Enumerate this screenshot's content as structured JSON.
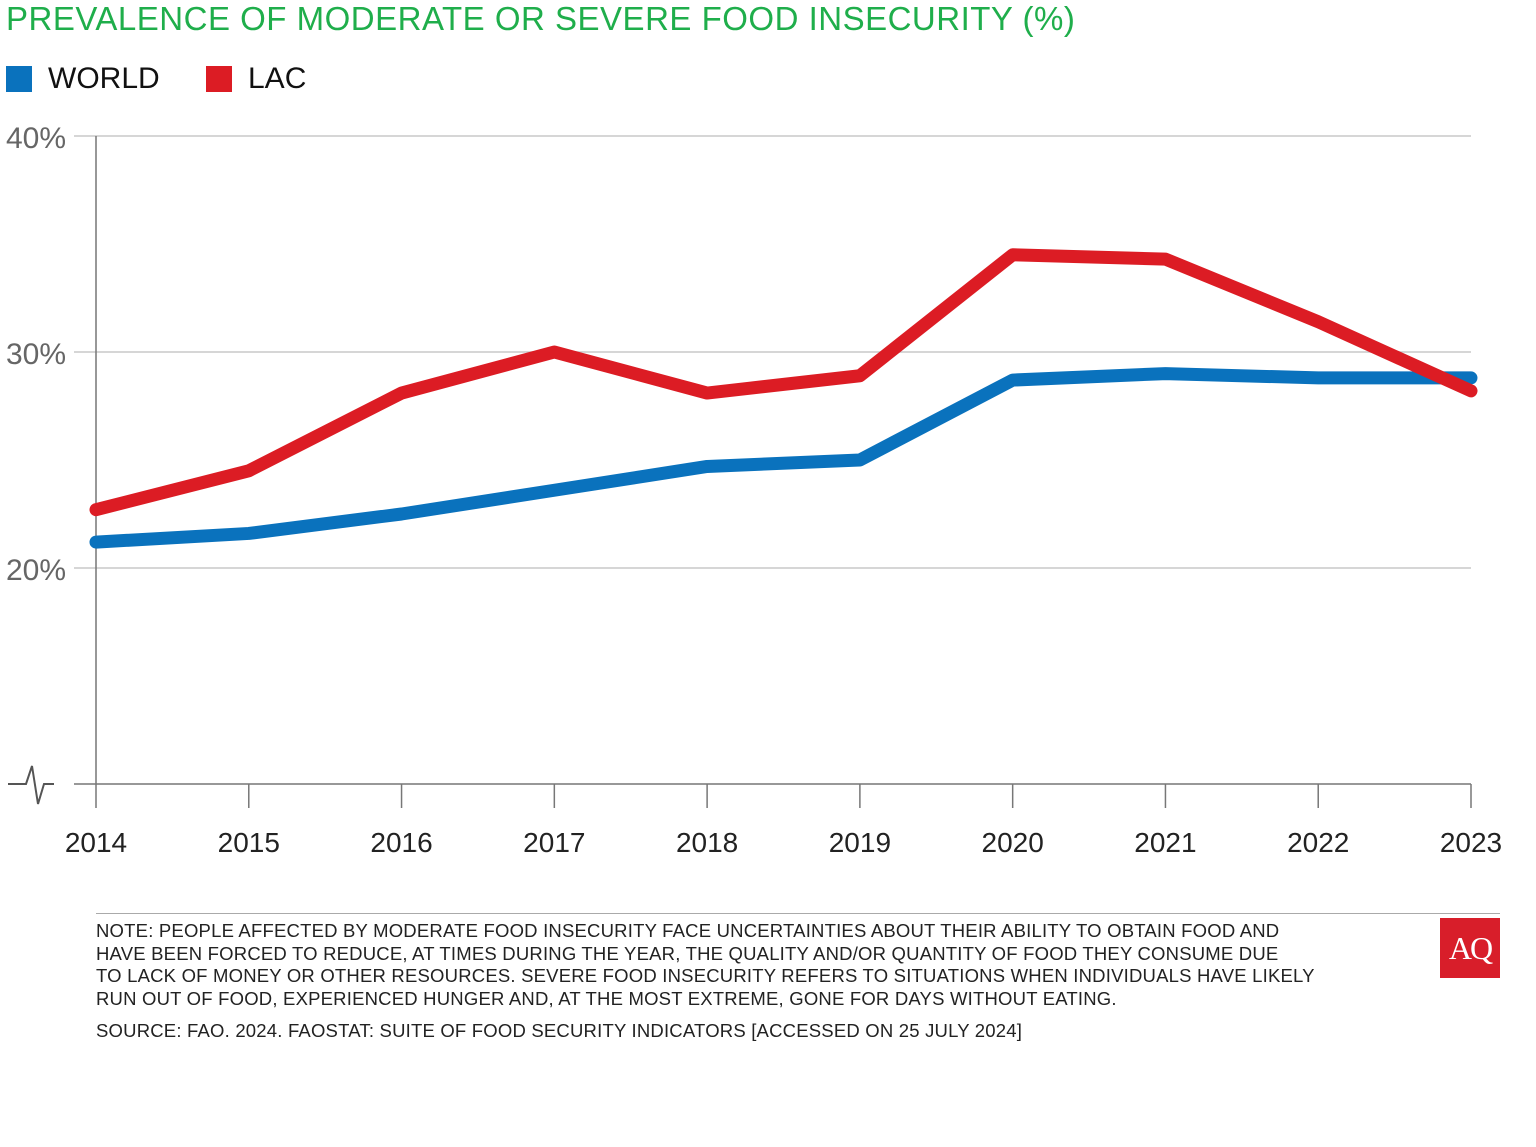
{
  "chart_data": {
    "type": "line",
    "title": "PREVALENCE OF MODERATE OR SEVERE FOOD INSECURITY (%)",
    "xlabel": "",
    "ylabel": "",
    "x": [
      "2014",
      "2015",
      "2016",
      "2017",
      "2018",
      "2019",
      "2020",
      "2021",
      "2022",
      "2023"
    ],
    "yticks": [
      "40%",
      "30%",
      "20%"
    ],
    "ytick_values": [
      40,
      30,
      20
    ],
    "ylim": [
      10,
      40
    ],
    "axis_break": true,
    "grid": true,
    "legend_placement": "top-left",
    "series": [
      {
        "name": "WORLD",
        "color": "#0a72bd",
        "values": [
          21.2,
          21.6,
          22.5,
          23.6,
          24.7,
          25.0,
          28.7,
          29.0,
          28.8,
          28.8
        ]
      },
      {
        "name": "LAC",
        "color": "#dc1c24",
        "values": [
          22.7,
          24.5,
          28.1,
          30.0,
          28.1,
          28.9,
          34.5,
          34.3,
          31.4,
          28.2
        ]
      }
    ]
  },
  "note_lines": [
    "NOTE: PEOPLE AFFECTED BY MODERATE FOOD INSECURITY FACE UNCERTAINTIES ABOUT THEIR ABILITY TO OBTAIN FOOD AND",
    "HAVE BEEN FORCED TO REDUCE, AT TIMES DURING THE YEAR, THE QUALITY AND/OR QUANTITY OF FOOD THEY CONSUME DUE",
    "TO LACK OF MONEY OR OTHER RESOURCES. SEVERE FOOD INSECURITY REFERS TO SITUATIONS WHEN INDIVIDUALS HAVE LIKELY",
    "RUN OUT OF FOOD, EXPERIENCED HUNGER AND, AT THE MOST EXTREME, GONE FOR DAYS WITHOUT EATING."
  ],
  "source": "SOURCE: FAO. 2024. FAOSTAT: SUITE OF FOOD SECURITY INDICATORS [ACCESSED ON 25 JULY 2024]",
  "logo_text": "AQ"
}
